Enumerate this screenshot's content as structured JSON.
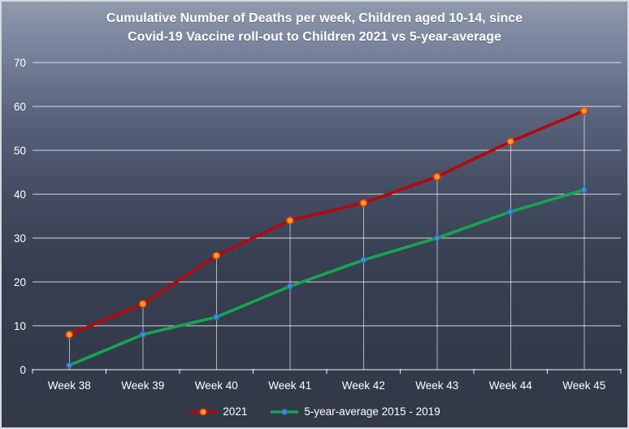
{
  "title": {
    "line1": "Cumulative Number of Deaths per week, Children aged 10-14, since",
    "line2": "Covid-19 Vaccine roll-out to Children 2021 vs 5-year-average"
  },
  "chart_data": {
    "type": "line",
    "categories": [
      "Week 38",
      "Week 39",
      "Week 40",
      "Week 41",
      "Week 42",
      "Week 43",
      "Week 44",
      "Week 45"
    ],
    "series": [
      {
        "name": "2021",
        "values": [
          8,
          15,
          26,
          34,
          38,
          44,
          52,
          59
        ],
        "line_color": "#B5070E",
        "marker_fill": "#FFA01E",
        "marker_edge": "#E53A10"
      },
      {
        "name": "5-year-average 2015 - 2019",
        "values": [
          1,
          8,
          12,
          19,
          25,
          30,
          36,
          41
        ],
        "line_color": "#17A453",
        "marker_fill": "#3E8FDC",
        "marker_edge": "#2C6CB4"
      }
    ],
    "ylim": [
      0,
      70
    ],
    "yticks": [
      0,
      10,
      20,
      30,
      40,
      50,
      60,
      70
    ],
    "xlabel": "",
    "ylabel": "",
    "grid": "horizontal gridlines + vertical drop lines at each category",
    "legend_position": "bottom"
  },
  "colors": {
    "background_gradient_stops": [
      "#8F9AAE",
      "#76819A",
      "#57617A",
      "#434C61",
      "#373F51",
      "#333B4B",
      "#323947"
    ],
    "background_gradient_pos": [
      0,
      12,
      28,
      45,
      62,
      82,
      100
    ],
    "border": "#D6DAE0",
    "gridline": "rgba(255,255,255,0.78)",
    "axis_line": "rgba(255,255,255,0.95)",
    "drop_line": "rgba(255,255,255,0.62)",
    "text": "#FFFFFF"
  }
}
